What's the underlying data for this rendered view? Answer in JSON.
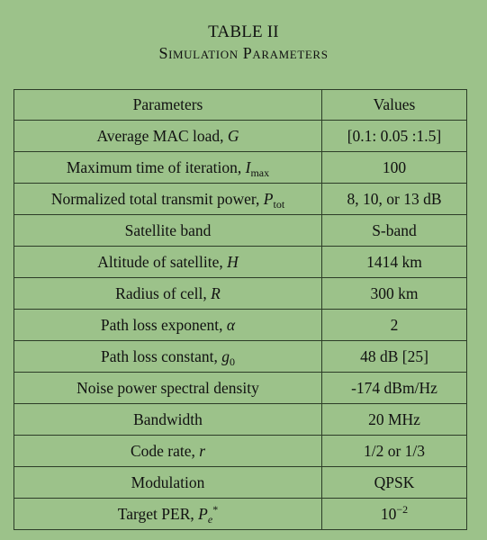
{
  "title": "TABLE II",
  "caption": "Simulation Parameters",
  "headers": {
    "param": "Parameters",
    "value": "Values"
  },
  "rows": [
    {
      "label": "Average MAC load, ",
      "sym": "G",
      "value": "[0.1: 0.05 :1.5]"
    },
    {
      "label": "Maximum time of iteration, ",
      "sym": "I",
      "sub": "max",
      "value": "100"
    },
    {
      "label": "Normalized total transmit power, ",
      "sym": "P",
      "sub": "tot",
      "value": "8, 10, or 13 dB"
    },
    {
      "label": "Satellite band",
      "value": "S-band"
    },
    {
      "label": "Altitude of satellite, ",
      "sym": "H",
      "value": "1414 km"
    },
    {
      "label": "Radius of cell, ",
      "sym": "R",
      "value": "300 km"
    },
    {
      "label": "Path loss exponent, ",
      "sym": "α",
      "value": "2"
    },
    {
      "label": "Path loss constant, ",
      "sym": "g",
      "sub": "0",
      "value": "48 dB [25]"
    },
    {
      "label": "Noise power spectral density",
      "value": "-174 dBm/Hz"
    },
    {
      "label": "Bandwidth",
      "value": "20 MHz"
    },
    {
      "label": "Code rate, ",
      "sym": "r",
      "value": "1/2 or 1/3"
    },
    {
      "label": "Modulation",
      "value": "QPSK"
    },
    {
      "label": "Target PER, ",
      "sym": "P",
      "subi": "e",
      "sup": "*",
      "value_base": "10",
      "value_exp": "−2"
    }
  ]
}
